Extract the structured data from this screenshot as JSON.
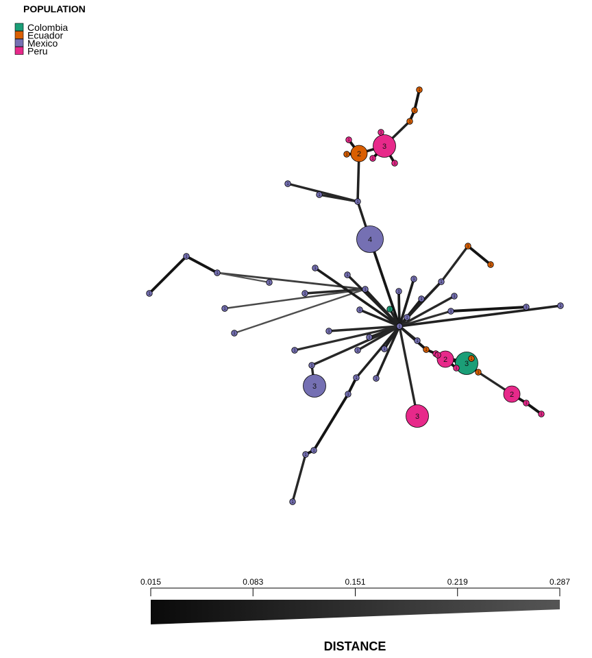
{
  "legend": {
    "title": "POPULATION",
    "items": [
      {
        "label": "Colombia",
        "color": "#1b9e77"
      },
      {
        "label": "Ecuador",
        "color": "#d95f02"
      },
      {
        "label": "Mexico",
        "color": "#7570b3"
      },
      {
        "label": "Peru",
        "color": "#e7298a"
      }
    ]
  },
  "distance_scale": {
    "title": "DISTANCE",
    "ticks": [
      "0.015",
      "0.083",
      "0.151",
      "0.219",
      "0.287"
    ],
    "min": 0.015,
    "max": 0.287,
    "color_start": "#0a0a0a",
    "color_end": "#555555"
  },
  "chart_data": {
    "type": "network",
    "nodes": [
      {
        "label": "1",
        "population": "Mexico",
        "count": 1
      },
      {
        "label": "4",
        "population": "Mexico",
        "count": 4
      },
      {
        "label": "1",
        "population": "Mexico",
        "count": 1
      },
      {
        "label": "1",
        "population": "Mexico",
        "count": 1
      },
      {
        "label": "1",
        "population": "Mexico",
        "count": 1
      },
      {
        "label": "2",
        "population": "Ecuador",
        "count": 2
      },
      {
        "label": "1",
        "population": "Ecuador",
        "count": 1
      },
      {
        "label": "1",
        "population": "Peru",
        "count": 1
      },
      {
        "label": "3",
        "population": "Peru",
        "count": 3
      },
      {
        "label": "1",
        "population": "Peru",
        "count": 1
      },
      {
        "label": "1",
        "population": "Peru",
        "count": 1
      },
      {
        "label": "1",
        "population": "Peru",
        "count": 1
      },
      {
        "label": "1",
        "population": "Ecuador",
        "count": 1
      },
      {
        "label": "1",
        "population": "Ecuador",
        "count": 1
      },
      {
        "label": "1",
        "population": "Ecuador",
        "count": 1
      },
      {
        "label": "1",
        "population": "Mexico",
        "count": 1
      },
      {
        "label": "1",
        "population": "Mexico",
        "count": 1
      },
      {
        "label": "1",
        "population": "Mexico",
        "count": 1
      },
      {
        "label": "1",
        "population": "Mexico",
        "count": 1
      },
      {
        "label": "1",
        "population": "Mexico",
        "count": 1
      },
      {
        "label": "1",
        "population": "Mexico",
        "count": 1
      },
      {
        "label": "1",
        "population": "Mexico",
        "count": 1
      },
      {
        "label": "1",
        "population": "Mexico",
        "count": 1
      },
      {
        "label": "1",
        "population": "Mexico",
        "count": 1
      },
      {
        "label": "1",
        "population": "Mexico",
        "count": 1
      },
      {
        "label": "1",
        "population": "Mexico",
        "count": 1
      },
      {
        "label": "1",
        "population": "Mexico",
        "count": 1
      },
      {
        "label": "1",
        "population": "Mexico",
        "count": 1
      },
      {
        "label": "1",
        "population": "Colombia",
        "count": 1
      },
      {
        "label": "1",
        "population": "Mexico",
        "count": 1
      },
      {
        "label": "1",
        "population": "Mexico",
        "count": 1
      },
      {
        "label": "1",
        "population": "Ecuador",
        "count": 1
      },
      {
        "label": "1",
        "population": "Ecuador",
        "count": 1
      },
      {
        "label": "1",
        "population": "Mexico",
        "count": 1
      },
      {
        "label": "1",
        "population": "Mexico",
        "count": 1
      },
      {
        "label": "1",
        "population": "Mexico",
        "count": 1
      },
      {
        "label": "1",
        "population": "Mexico",
        "count": 1
      },
      {
        "label": "1",
        "population": "Mexico",
        "count": 1
      },
      {
        "label": "1",
        "population": "Mexico",
        "count": 1
      },
      {
        "label": "1",
        "population": "Mexico",
        "count": 1
      },
      {
        "label": "1",
        "population": "Mexico",
        "count": 1
      },
      {
        "label": "1",
        "population": "Mexico",
        "count": 1
      },
      {
        "label": "1",
        "population": "Mexico",
        "count": 1
      },
      {
        "label": "3",
        "population": "Mexico",
        "count": 3
      },
      {
        "label": "1",
        "population": "Mexico",
        "count": 1
      },
      {
        "label": "1",
        "population": "Mexico",
        "count": 1
      },
      {
        "label": "1",
        "population": "Mexico",
        "count": 1
      },
      {
        "label": "1",
        "population": "Mexico",
        "count": 1
      },
      {
        "label": "1",
        "population": "Mexico",
        "count": 1
      },
      {
        "label": "1",
        "population": "Mexico",
        "count": 1
      },
      {
        "label": "1",
        "population": "Mexico",
        "count": 1
      },
      {
        "label": "1",
        "population": "Ecuador",
        "count": 1
      },
      {
        "label": "1",
        "population": "Peru",
        "count": 1
      },
      {
        "label": "2",
        "population": "Peru",
        "count": 2
      },
      {
        "label": "1",
        "population": "Colombia",
        "count": 1
      },
      {
        "label": "3",
        "population": "Colombia",
        "count": 3
      },
      {
        "label": "1",
        "population": "Ecuador",
        "count": 1
      },
      {
        "label": "1",
        "population": "Peru",
        "count": 1
      },
      {
        "label": "1",
        "population": "Peru",
        "count": 1
      },
      {
        "label": "1",
        "population": "Ecuador",
        "count": 1
      },
      {
        "label": "2",
        "population": "Peru",
        "count": 2
      },
      {
        "label": "1",
        "population": "Peru",
        "count": 1
      },
      {
        "label": "1",
        "population": "Peru",
        "count": 1
      },
      {
        "label": "3",
        "population": "Peru",
        "count": 3
      },
      {
        "label": "1",
        "population": "Mexico",
        "count": 1
      }
    ],
    "edges": [
      [
        0,
        1,
        0.06
      ],
      [
        1,
        2,
        0.1
      ],
      [
        2,
        3,
        0.12
      ],
      [
        2,
        4,
        0.12
      ],
      [
        2,
        5,
        0.1
      ],
      [
        5,
        6,
        0.05
      ],
      [
        5,
        7,
        0.05
      ],
      [
        5,
        8,
        0.08
      ],
      [
        8,
        9,
        0.05
      ],
      [
        8,
        10,
        0.06
      ],
      [
        8,
        11,
        0.05
      ],
      [
        8,
        12,
        0.1
      ],
      [
        12,
        13,
        0.05
      ],
      [
        13,
        14,
        0.05
      ],
      [
        0,
        15,
        0.1
      ],
      [
        15,
        16,
        0.12
      ],
      [
        15,
        17,
        0.2
      ],
      [
        17,
        18,
        0.05
      ],
      [
        18,
        19,
        0.05
      ],
      [
        17,
        20,
        0.28
      ],
      [
        15,
        21,
        0.24
      ],
      [
        15,
        22,
        0.26
      ],
      [
        0,
        23,
        0.08
      ],
      [
        0,
        24,
        0.1
      ],
      [
        0,
        25,
        0.08
      ],
      [
        0,
        26,
        0.08
      ],
      [
        0,
        27,
        0.08
      ],
      [
        0,
        28,
        0.1
      ],
      [
        0,
        29,
        0.12
      ],
      [
        29,
        30,
        0.1
      ],
      [
        0,
        30,
        0.1
      ],
      [
        30,
        31,
        0.12
      ],
      [
        31,
        32,
        0.05
      ],
      [
        0,
        33,
        0.12
      ],
      [
        0,
        34,
        0.15
      ],
      [
        34,
        35,
        0.05
      ],
      [
        0,
        36,
        0.1
      ],
      [
        0,
        37,
        0.1
      ],
      [
        0,
        38,
        0.12
      ],
      [
        0,
        39,
        0.1
      ],
      [
        0,
        40,
        0.12
      ],
      [
        0,
        41,
        0.14
      ],
      [
        0,
        42,
        0.12
      ],
      [
        42,
        43,
        0.12
      ],
      [
        0,
        44,
        0.1
      ],
      [
        0,
        45,
        0.1
      ],
      [
        0,
        46,
        0.1
      ],
      [
        46,
        47,
        0.05
      ],
      [
        47,
        48,
        0.05
      ],
      [
        48,
        49,
        0.05
      ],
      [
        49,
        50,
        0.12
      ],
      [
        0,
        51,
        0.06
      ],
      [
        51,
        52,
        0.05
      ],
      [
        52,
        53,
        0.06
      ],
      [
        53,
        54,
        0.05
      ],
      [
        53,
        55,
        0.05
      ],
      [
        55,
        56,
        0.05
      ],
      [
        55,
        57,
        0.05
      ],
      [
        53,
        58,
        0.05
      ],
      [
        55,
        59,
        0.05
      ],
      [
        59,
        60,
        0.12
      ],
      [
        60,
        61,
        0.05
      ],
      [
        61,
        62,
        0.05
      ],
      [
        0,
        63,
        0.12
      ],
      [
        0,
        64,
        0.1
      ]
    ]
  }
}
